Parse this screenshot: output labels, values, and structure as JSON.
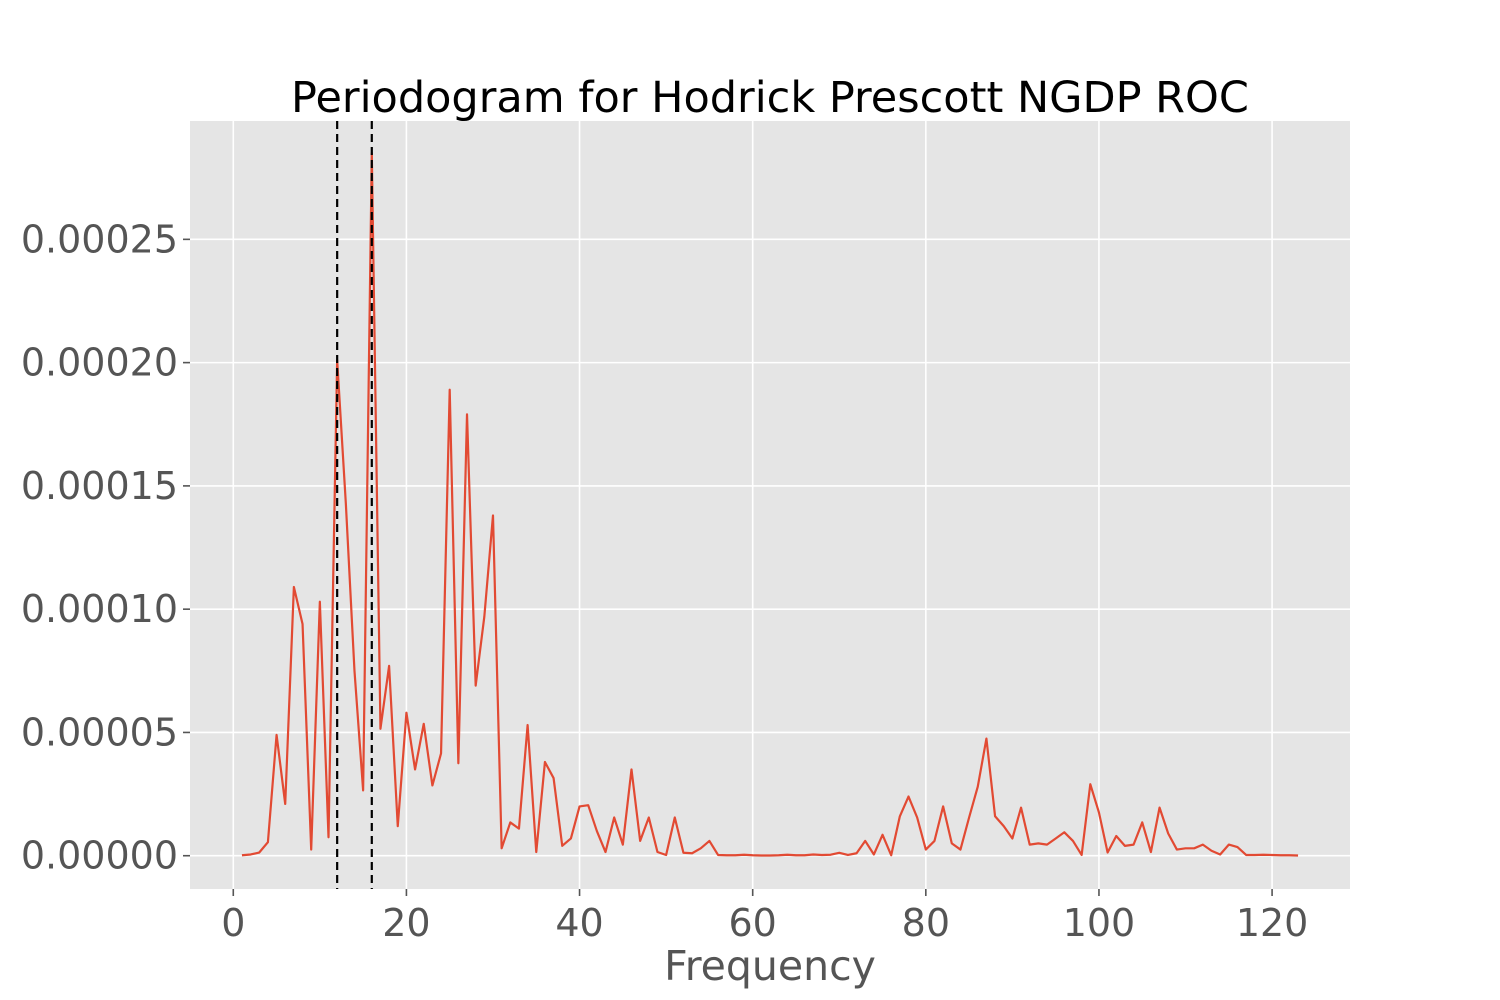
{
  "chart_data": {
    "type": "line",
    "title": "Periodogram for Hodrick Prescott NGDP ROC",
    "xlabel": "Frequency",
    "ylabel": "",
    "xlim": [
      -5,
      129
    ],
    "ylim": [
      -1.35e-05,
      0.000298
    ],
    "xticks": [
      0,
      20,
      40,
      60,
      80,
      100,
      120
    ],
    "xtick_labels": [
      "0",
      "20",
      "40",
      "60",
      "80",
      "100",
      "120"
    ],
    "yticks": [
      0,
      5e-05,
      0.0001,
      0.00015,
      0.0002,
      0.00025
    ],
    "ytick_labels": [
      "0.00000",
      "0.00005",
      "0.00010",
      "0.00015",
      "0.00020",
      "0.00025"
    ],
    "grid": true,
    "background_color": "#e5e5e5",
    "grid_color": "#ffffff",
    "vlines": [
      {
        "x": 12,
        "style": "dashed",
        "color": "#000000"
      },
      {
        "x": 16,
        "style": "dashed",
        "color": "#000000"
      }
    ],
    "series": [
      {
        "color": "#e24a33",
        "x": [
          1,
          2,
          3,
          4,
          5,
          6,
          7,
          8,
          9,
          10,
          11,
          12,
          13,
          14,
          15,
          16,
          17,
          18,
          19,
          20,
          21,
          22,
          23,
          24,
          25,
          26,
          27,
          28,
          29,
          30,
          31,
          32,
          33,
          34,
          35,
          36,
          37,
          38,
          39,
          40,
          41,
          42,
          43,
          44,
          45,
          46,
          47,
          48,
          49,
          50,
          51,
          52,
          53,
          54,
          55,
          56,
          57,
          58,
          59,
          60,
          61,
          62,
          63,
          64,
          65,
          66,
          67,
          68,
          69,
          70,
          71,
          72,
          73,
          74,
          75,
          76,
          77,
          78,
          79,
          80,
          81,
          82,
          83,
          84,
          85,
          86,
          87,
          88,
          89,
          90,
          91,
          92,
          93,
          94,
          95,
          96,
          97,
          98,
          99,
          100,
          101,
          102,
          103,
          104,
          105,
          106,
          107,
          108,
          109,
          110,
          111,
          112,
          113,
          114,
          115,
          116,
          117,
          118,
          119,
          120,
          121,
          122,
          123
        ],
        "y": [
          2e-07,
          5e-07,
          1.3e-06,
          5.5e-06,
          4.9e-05,
          2.1e-05,
          0.000109,
          9.4e-05,
          2.5e-06,
          0.000103,
          7.5e-06,
          0.000201,
          0.000143,
          7.5e-05,
          2.65e-05,
          0.000285,
          5.15e-05,
          7.7e-05,
          1.2e-05,
          5.8e-05,
          3.5e-05,
          5.35e-05,
          2.85e-05,
          4.15e-05,
          0.000189,
          3.75e-05,
          0.000179,
          6.9e-05,
          9.7e-05,
          0.000138,
          3e-06,
          1.35e-05,
          1.1e-05,
          5.3e-05,
          1.5e-06,
          3.8e-05,
          3.15e-05,
          4e-06,
          7e-06,
          2e-05,
          2.05e-05,
          1e-05,
          1.5e-06,
          1.55e-05,
          4.5e-06,
          3.5e-05,
          6e-06,
          1.55e-05,
          1.5e-06,
          3e-07,
          1.55e-05,
          1.2e-06,
          1e-06,
          3e-06,
          6e-06,
          3e-07,
          2e-07,
          2e-07,
          4e-07,
          2e-07,
          1e-07,
          1e-07,
          2e-07,
          4e-07,
          2e-07,
          2e-07,
          5e-07,
          3e-07,
          4e-07,
          1.2e-06,
          3e-07,
          1e-06,
          6e-06,
          5e-07,
          8.5e-06,
          2e-07,
          1.6e-05,
          2.4e-05,
          1.55e-05,
          2.5e-06,
          6e-06,
          2e-05,
          5e-06,
          2.5e-06,
          1.55e-05,
          2.8e-05,
          4.75e-05,
          1.6e-05,
          1.2e-05,
          7e-06,
          1.95e-05,
          4.5e-06,
          5e-06,
          4.5e-06,
          7e-06,
          9.5e-06,
          6e-06,
          3e-07,
          2.9e-05,
          1.75e-05,
          1.3e-06,
          8e-06,
          4e-06,
          4.5e-06,
          1.35e-05,
          1.5e-06,
          1.95e-05,
          9e-06,
          2.5e-06,
          3e-06,
          3e-06,
          4.5e-06,
          2e-06,
          5e-07,
          4.5e-06,
          3.5e-06,
          3e-07,
          3e-07,
          4e-07,
          3e-07,
          2e-07,
          2e-07,
          1e-07
        ]
      }
    ]
  }
}
